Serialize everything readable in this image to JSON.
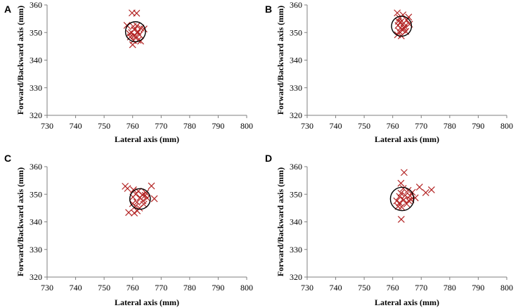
{
  "figure": {
    "marker_color": "#b22222",
    "axis_color": "#7f7f7f",
    "text_color": "#000000"
  },
  "chart_data": [
    {
      "type": "scatter",
      "panel": "A",
      "xlabel": "Lateral axis (mm)",
      "ylabel": "Forward/Backward axis (mm)",
      "xlim": [
        730,
        800
      ],
      "ylim": [
        320,
        360
      ],
      "xticks": [
        730,
        740,
        750,
        760,
        770,
        780,
        790,
        800
      ],
      "yticks": [
        320,
        330,
        340,
        350,
        360
      ],
      "circle": {
        "cx": 761,
        "cy": 350.3,
        "r": 3.5
      },
      "points": [
        [
          759.8,
          357.1
        ],
        [
          761.4,
          357.0
        ],
        [
          758.0,
          352.6
        ],
        [
          760.2,
          352.2
        ],
        [
          761.5,
          352.4
        ],
        [
          762.9,
          351.6
        ],
        [
          760.6,
          351.0
        ],
        [
          764.0,
          351.3
        ],
        [
          761.8,
          350.3
        ],
        [
          759.6,
          350.0
        ],
        [
          762.4,
          349.2
        ],
        [
          760.5,
          348.7
        ],
        [
          761.2,
          348.6
        ],
        [
          759.2,
          348.4
        ],
        [
          761.9,
          347.2
        ],
        [
          760.3,
          347.1
        ],
        [
          762.8,
          346.9
        ],
        [
          760.0,
          345.6
        ],
        [
          758.9,
          349.6
        ],
        [
          761.7,
          349.9
        ]
      ]
    },
    {
      "type": "scatter",
      "panel": "B",
      "xlabel": "Lateral axis (mm)",
      "ylabel": "Forward/Backward axis (mm)",
      "xlim": [
        730,
        800
      ],
      "ylim": [
        320,
        360
      ],
      "xticks": [
        730,
        740,
        750,
        760,
        770,
        780,
        790,
        800
      ],
      "yticks": [
        320,
        330,
        340,
        350,
        360
      ],
      "circle": {
        "cx": 763.1,
        "cy": 352.3,
        "r": 3.5
      },
      "points": [
        [
          761.6,
          357.1
        ],
        [
          763.6,
          356.4
        ],
        [
          765.6,
          355.6
        ],
        [
          762.4,
          355.2
        ],
        [
          764.9,
          354.5
        ],
        [
          762.8,
          353.8
        ],
        [
          763.9,
          353.4
        ],
        [
          761.9,
          352.6
        ],
        [
          764.2,
          352.2
        ],
        [
          762.7,
          351.6
        ],
        [
          763.5,
          350.9
        ],
        [
          764.6,
          350.4
        ],
        [
          762.3,
          350.4
        ],
        [
          761.7,
          349.2
        ],
        [
          763.0,
          348.8
        ],
        [
          764.0,
          351.6
        ],
        [
          762.0,
          354.1
        ],
        [
          765.9,
          353.0
        ]
      ]
    },
    {
      "type": "scatter",
      "panel": "C",
      "xlabel": "Lateral axis (mm)",
      "ylabel": "Forward/Backward axis (mm)",
      "xlim": [
        730,
        800
      ],
      "ylim": [
        320,
        360
      ],
      "xticks": [
        730,
        740,
        750,
        760,
        770,
        780,
        790,
        800
      ],
      "yticks": [
        320,
        330,
        340,
        350,
        360
      ],
      "circle": {
        "cx": 762.6,
        "cy": 348.3,
        "r": 3.6
      },
      "points": [
        [
          757.4,
          352.9
        ],
        [
          766.6,
          353.0
        ],
        [
          758.2,
          352.1
        ],
        [
          760.3,
          351.6
        ],
        [
          762.0,
          351.1
        ],
        [
          764.6,
          350.6
        ],
        [
          761.1,
          350.0
        ],
        [
          763.4,
          349.8
        ],
        [
          760.1,
          349.0
        ],
        [
          762.6,
          348.8
        ],
        [
          765.1,
          348.6
        ],
        [
          767.6,
          348.4
        ],
        [
          763.6,
          347.6
        ],
        [
          761.5,
          347.1
        ],
        [
          760.0,
          346.6
        ],
        [
          763.9,
          346.4
        ],
        [
          761.0,
          345.7
        ],
        [
          762.4,
          345.0
        ],
        [
          758.6,
          343.4
        ],
        [
          760.6,
          343.2
        ],
        [
          761.6,
          344.0
        ],
        [
          764.4,
          349.6
        ]
      ]
    },
    {
      "type": "scatter",
      "panel": "D",
      "xlabel": "Lateral axis (mm)",
      "ylabel": "Forward/Backward axis (mm)",
      "xlim": [
        730,
        800
      ],
      "ylim": [
        320,
        360
      ],
      "xticks": [
        730,
        740,
        750,
        760,
        770,
        780,
        790,
        800
      ],
      "yticks": [
        320,
        330,
        340,
        350,
        360
      ],
      "circle": {
        "cx": 763.3,
        "cy": 348.3,
        "r": 4.1
      },
      "points": [
        [
          764.0,
          357.9
        ],
        [
          762.9,
          354.0
        ],
        [
          763.7,
          352.1
        ],
        [
          765.4,
          351.4
        ],
        [
          766.9,
          350.7
        ],
        [
          769.4,
          352.6
        ],
        [
          771.6,
          350.6
        ],
        [
          773.6,
          351.6
        ],
        [
          762.9,
          350.4
        ],
        [
          764.4,
          349.6
        ],
        [
          766.1,
          349.4
        ],
        [
          767.9,
          348.7
        ],
        [
          762.4,
          349.2
        ],
        [
          763.9,
          348.0
        ],
        [
          765.6,
          347.7
        ],
        [
          761.4,
          347.6
        ],
        [
          762.4,
          346.9
        ],
        [
          764.9,
          346.5
        ],
        [
          763.1,
          345.4
        ],
        [
          761.9,
          345.6
        ],
        [
          763.0,
          340.9
        ],
        [
          766.4,
          348.0
        ]
      ]
    }
  ]
}
